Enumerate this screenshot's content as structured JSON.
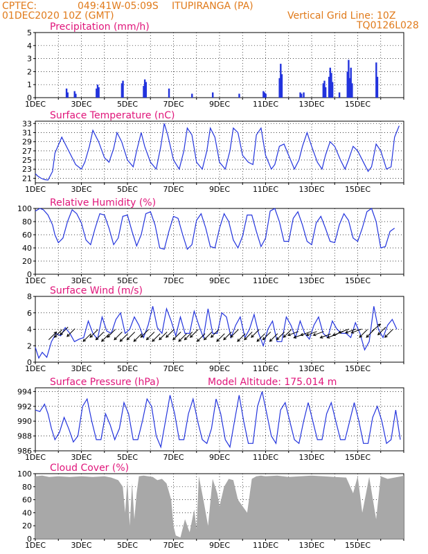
{
  "header": {
    "source": "CPTEC:",
    "coords": "049:41W-05:09S",
    "location": "ITUPIRANGA (PA)",
    "datetime": "01DEC2020 10Z (GMT)",
    "grid_note": "Vertical Grid Line: 10Z",
    "model_code": "TQ0126L028"
  },
  "colors": {
    "header": "#e07a1a",
    "title": "#e0157a",
    "line": "#2233dd",
    "cloud": "#a8a8a8"
  },
  "x_tick_labels": [
    "1DEC",
    "3DEC",
    "5DEC",
    "7DEC",
    "9DEC",
    "11DEC",
    "13DEC",
    "15DEC"
  ],
  "chart_data": [
    {
      "type": "bar",
      "title": "Precipitation (mm/h)",
      "ylim": [
        0,
        5
      ],
      "yticks": [
        "0",
        "1",
        "2",
        "3",
        "4",
        "5"
      ],
      "x_unit": "days since 1DEC 00Z",
      "x": [
        1.35,
        1.4,
        1.7,
        1.75,
        2.65,
        2.7,
        2.75,
        3.75,
        3.8,
        4.7,
        4.75,
        4.8,
        5.8,
        6.8,
        7.7,
        8.85,
        9.9,
        9.95,
        10.0,
        10.6,
        10.65,
        10.7,
        11.5,
        11.55,
        11.65,
        12.5,
        12.55,
        12.6,
        12.75,
        12.8,
        12.85,
        12.9,
        13.2,
        13.55,
        13.6,
        13.65,
        13.7,
        13.75,
        14.8,
        14.85
      ],
      "values": [
        0.7,
        0.4,
        0.5,
        0.3,
        0.7,
        1.0,
        0.8,
        1.1,
        1.3,
        0.9,
        1.4,
        1.2,
        0.7,
        0.3,
        0.4,
        0.3,
        0.5,
        0.4,
        0.3,
        1.5,
        2.6,
        1.8,
        0.4,
        0.3,
        0.4,
        1.1,
        1.3,
        0.8,
        1.6,
        2.3,
        1.9,
        1.2,
        0.4,
        2.0,
        2.9,
        1.5,
        2.3,
        1.1,
        2.7,
        1.6
      ]
    },
    {
      "type": "line",
      "title": "Surface Temperature (nC)",
      "ylim": [
        20,
        33.5
      ],
      "yticks": [
        "21",
        "23",
        "25",
        "27",
        "29",
        "31",
        "33"
      ],
      "ytick_values": [
        21,
        23,
        25,
        27,
        29,
        31,
        33
      ],
      "x": [
        0,
        0.1,
        0.25,
        0.4,
        0.55,
        0.75,
        0.85,
        1.15,
        1.45,
        1.75,
        2.0,
        2.15,
        2.35,
        2.5,
        2.75,
        3.0,
        3.2,
        3.4,
        3.55,
        3.75,
        4.0,
        4.25,
        4.4,
        4.6,
        4.75,
        5.0,
        5.25,
        5.45,
        5.6,
        5.75,
        6.0,
        6.25,
        6.45,
        6.6,
        6.8,
        7.0,
        7.25,
        7.45,
        7.6,
        7.8,
        8.0,
        8.25,
        8.45,
        8.6,
        8.8,
        9.0,
        9.25,
        9.45,
        9.6,
        9.8,
        10.0,
        10.25,
        10.4,
        10.6,
        10.8,
        11.0,
        11.25,
        11.45,
        11.6,
        11.8,
        12.0,
        12.25,
        12.45,
        12.6,
        12.8,
        13.0,
        13.25,
        13.45,
        13.6,
        13.8,
        14.0,
        14.25,
        14.45,
        14.6,
        14.8,
        15.0,
        15.25,
        15.45,
        15.6,
        15.8
      ],
      "values": [
        22,
        21.5,
        21,
        20.7,
        20.6,
        22.5,
        26.5,
        30,
        27,
        24,
        23,
        24.5,
        28,
        31.5,
        29,
        25.5,
        24.5,
        27.5,
        31,
        29,
        25,
        23.5,
        27,
        31,
        28,
        24.5,
        23,
        28,
        33,
        30.5,
        25,
        23,
        27,
        32,
        30.5,
        24.5,
        23,
        27,
        32,
        30,
        24.5,
        23,
        27,
        32,
        31,
        26,
        24.5,
        24,
        30.5,
        32,
        26,
        23,
        24,
        28,
        28.5,
        26,
        23,
        25,
        28,
        31,
        28,
        24.5,
        23,
        26,
        29,
        28,
        25,
        23,
        25,
        28,
        27,
        24.5,
        22.5,
        23.5,
        28.5,
        27,
        23,
        23.5,
        30,
        32.5
      ]
    },
    {
      "type": "line",
      "title": "Relative Humidity (%)",
      "ylim": [
        0,
        100
      ],
      "yticks": [
        "0",
        "20",
        "40",
        "60",
        "80",
        "100"
      ],
      "ytick_values": [
        0,
        20,
        40,
        60,
        80,
        100
      ],
      "x": [
        0,
        0.2,
        0.35,
        0.55,
        0.75,
        0.85,
        1.0,
        1.2,
        1.4,
        1.6,
        1.8,
        2.0,
        2.2,
        2.4,
        2.6,
        2.8,
        3.0,
        3.2,
        3.4,
        3.6,
        3.8,
        4.0,
        4.2,
        4.4,
        4.6,
        4.8,
        5.0,
        5.2,
        5.4,
        5.6,
        5.8,
        6.0,
        6.2,
        6.4,
        6.6,
        6.8,
        7.0,
        7.2,
        7.4,
        7.6,
        7.8,
        8.0,
        8.2,
        8.4,
        8.6,
        8.8,
        9.0,
        9.2,
        9.4,
        9.6,
        9.8,
        10.0,
        10.2,
        10.4,
        10.6,
        10.8,
        11.0,
        11.2,
        11.4,
        11.6,
        11.8,
        12.0,
        12.2,
        12.4,
        12.6,
        12.8,
        13.0,
        13.2,
        13.4,
        13.6,
        13.8,
        14.0,
        14.2,
        14.4,
        14.6,
        14.8,
        15.0,
        15.2,
        15.4,
        15.6
      ],
      "values": [
        96,
        100,
        98,
        90,
        75,
        60,
        48,
        55,
        80,
        98,
        92,
        78,
        52,
        45,
        70,
        92,
        90,
        70,
        45,
        55,
        88,
        90,
        65,
        43,
        60,
        92,
        95,
        75,
        40,
        38,
        65,
        88,
        85,
        60,
        38,
        45,
        82,
        92,
        70,
        42,
        40,
        70,
        92,
        80,
        52,
        40,
        58,
        90,
        90,
        65,
        42,
        55,
        96,
        100,
        80,
        50,
        50,
        85,
        95,
        75,
        50,
        45,
        78,
        88,
        70,
        50,
        48,
        75,
        92,
        82,
        55,
        50,
        70,
        95,
        100,
        80,
        40,
        42,
        65,
        70
      ]
    },
    {
      "type": "line",
      "title": "Surface Wind (m/s)",
      "ylim": [
        0,
        8
      ],
      "yticks": [
        "0",
        "2",
        "4",
        "6",
        "8"
      ],
      "ytick_values": [
        0,
        2,
        4,
        6,
        8
      ],
      "x": [
        0,
        0.15,
        0.3,
        0.5,
        0.7,
        0.9,
        1.1,
        1.3,
        1.5,
        1.7,
        1.9,
        2.1,
        2.3,
        2.5,
        2.7,
        2.9,
        3.1,
        3.3,
        3.5,
        3.7,
        3.9,
        4.1,
        4.3,
        4.5,
        4.7,
        4.9,
        5.1,
        5.3,
        5.5,
        5.7,
        5.9,
        6.1,
        6.3,
        6.5,
        6.7,
        6.9,
        7.1,
        7.3,
        7.5,
        7.7,
        7.9,
        8.1,
        8.3,
        8.5,
        8.7,
        8.9,
        9.1,
        9.3,
        9.5,
        9.7,
        9.9,
        10.1,
        10.3,
        10.5,
        10.7,
        10.9,
        11.1,
        11.3,
        11.5,
        11.7,
        11.9,
        12.1,
        12.3,
        12.5,
        12.7,
        12.9,
        13.1,
        13.3,
        13.5,
        13.7,
        13.9,
        14.1,
        14.3,
        14.5,
        14.7,
        14.9,
        15.1,
        15.3,
        15.5,
        15.7
      ],
      "values": [
        1.8,
        0.5,
        1.2,
        0.6,
        2.5,
        3.5,
        3.2,
        4.2,
        3.5,
        2.5,
        2.8,
        3.0,
        5.0,
        3.5,
        2.8,
        5.5,
        3.8,
        3.5,
        5.2,
        6.0,
        3.5,
        4.0,
        5.5,
        4.5,
        3.0,
        4.5,
        6.8,
        4.2,
        3.5,
        6.5,
        5.0,
        3.2,
        5.5,
        3.5,
        3.5,
        6.2,
        4.5,
        3.0,
        6.5,
        3.5,
        3.5,
        6.0,
        5.5,
        3.0,
        4.5,
        5.5,
        3.0,
        4.0,
        5.8,
        3.5,
        2.0,
        4.0,
        5.0,
        2.5,
        2.5,
        5.5,
        4.5,
        3.0,
        5.0,
        3.5,
        2.8,
        4.5,
        5.5,
        3.5,
        3.0,
        5.0,
        4.0,
        3.5,
        3.5,
        3.0,
        4.8,
        3.5,
        1.5,
        2.5,
        6.8,
        4.0,
        3.0,
        4.5,
        5.2,
        4.0
      ],
      "arrow_x": [
        0.75,
        1.0,
        1.25,
        1.55,
        2.25,
        2.55,
        2.8,
        3.05,
        3.3,
        3.6,
        3.85,
        4.15,
        4.45,
        4.75,
        5.0,
        5.25,
        5.55,
        5.85,
        6.15,
        6.4,
        6.65,
        6.9,
        7.2,
        7.5,
        7.8,
        8.05,
        8.35,
        8.65,
        8.95,
        9.25,
        9.55,
        9.8,
        10.05,
        10.35,
        10.65,
        10.95,
        11.2,
        11.45,
        11.75,
        12.0,
        12.3,
        12.6,
        12.9,
        13.15,
        13.4,
        13.7,
        13.95,
        14.25,
        14.55,
        14.8,
        15.05,
        15.35
      ],
      "arrow_y": [
        3.2,
        3.5,
        3.8,
        3.6,
        3.0,
        3.5,
        3.2,
        3.0,
        3.5,
        3.2,
        3.0,
        3.2,
        3.0,
        3.5,
        3.2,
        3.0,
        3.2,
        3.5,
        3.2,
        3.0,
        3.2,
        3.5,
        3.0,
        3.2,
        3.5,
        3.0,
        3.2,
        3.5,
        3.0,
        3.2,
        3.5,
        3.0,
        3.2,
        3.0,
        3.2,
        3.5,
        3.5,
        3.2,
        3.5,
        3.5,
        3.5,
        3.2,
        3.2,
        3.5,
        3.8,
        3.8,
        3.8,
        3.5,
        3.5,
        4.2,
        3.8,
        3.5
      ],
      "arrow_dir_deg": [
        -135,
        45,
        45,
        45,
        45,
        45,
        45,
        45,
        45,
        45,
        45,
        45,
        45,
        45,
        45,
        45,
        45,
        45,
        45,
        45,
        45,
        45,
        45,
        45,
        45,
        45,
        45,
        45,
        45,
        45,
        45,
        45,
        45,
        45,
        45,
        45,
        20,
        20,
        20,
        20,
        20,
        20,
        20,
        20,
        20,
        20,
        20,
        45,
        45,
        -140,
        45,
        45
      ]
    },
    {
      "type": "line",
      "title": "Surface Pressure (hPa)",
      "annotation": "Model Altitude: 175.014 m",
      "ylim": [
        986,
        994.5
      ],
      "yticks": [
        "986",
        "988",
        "990",
        "992",
        "994"
      ],
      "ytick_values": [
        986,
        988,
        990,
        992,
        994
      ],
      "x": [
        0,
        0.2,
        0.4,
        0.55,
        0.7,
        0.85,
        1.05,
        1.25,
        1.45,
        1.65,
        1.85,
        2.05,
        2.25,
        2.45,
        2.65,
        2.85,
        3.05,
        3.25,
        3.45,
        3.65,
        3.85,
        4.05,
        4.25,
        4.45,
        4.65,
        4.85,
        5.05,
        5.25,
        5.45,
        5.65,
        5.85,
        6.05,
        6.25,
        6.45,
        6.65,
        6.85,
        7.05,
        7.25,
        7.45,
        7.65,
        7.85,
        8.05,
        8.25,
        8.45,
        8.65,
        8.85,
        9.05,
        9.25,
        9.45,
        9.65,
        9.85,
        10.05,
        10.25,
        10.45,
        10.65,
        10.85,
        11.05,
        11.25,
        11.45,
        11.65,
        11.85,
        12.05,
        12.25,
        12.45,
        12.65,
        12.85,
        13.05,
        13.25,
        13.45,
        13.65,
        13.85,
        14.05,
        14.25,
        14.45,
        14.65,
        14.85,
        15.05,
        15.25,
        15.45,
        15.65,
        15.85
      ],
      "values": [
        991.5,
        991.3,
        992.3,
        991,
        989,
        987.5,
        988.5,
        990.5,
        989,
        987.2,
        988,
        992,
        993,
        990,
        987.5,
        987.5,
        991,
        989.5,
        987.5,
        989,
        992.5,
        991,
        987.5,
        987.5,
        990,
        993,
        992,
        988,
        986.5,
        990,
        993.5,
        991,
        987.5,
        987.5,
        991,
        993,
        990,
        987.5,
        987,
        989,
        993,
        991,
        987.5,
        986.5,
        990,
        993.5,
        990,
        987,
        987,
        992,
        994,
        991,
        988,
        987,
        991.5,
        992.5,
        990,
        987.5,
        987,
        990,
        992.5,
        990,
        987.5,
        987.5,
        991,
        992.5,
        990,
        987.5,
        987.5,
        990,
        992.5,
        990,
        987,
        987,
        990.5,
        992,
        990,
        987,
        987.5,
        991.5,
        987.5
      ]
    },
    {
      "type": "area",
      "title": "Cloud Cover (%)",
      "ylim": [
        0,
        100
      ],
      "yticks": [
        "0",
        "20",
        "40",
        "60",
        "80",
        "100"
      ],
      "ytick_values": [
        0,
        20,
        40,
        60,
        80,
        100
      ],
      "x": [
        0,
        0.3,
        0.6,
        1,
        1.5,
        2,
        2.5,
        3,
        3.3,
        3.6,
        3.8,
        3.9,
        4.0,
        4.1,
        4.2,
        4.3,
        4.4,
        4.5,
        4.7,
        4.9,
        5.1,
        5.3,
        5.5,
        5.7,
        5.9,
        6.0,
        6.1,
        6.3,
        6.5,
        6.7,
        6.9,
        7.0,
        7.1,
        7.3,
        7.5,
        7.7,
        7.9,
        8.0,
        8.2,
        8.4,
        8.6,
        8.8,
        9.0,
        9.2,
        9.4,
        9.6,
        9.8,
        10,
        10.5,
        11,
        11.5,
        12,
        12.5,
        13,
        13.5,
        13.8,
        14.0,
        14.2,
        14.5,
        14.8,
        15,
        15.3,
        15.6,
        15.9,
        16
      ],
      "values": [
        96,
        97,
        95,
        96,
        95,
        96,
        95,
        96,
        94,
        90,
        80,
        40,
        90,
        20,
        85,
        30,
        70,
        96,
        97,
        96,
        95,
        90,
        92,
        85,
        60,
        20,
        5,
        2,
        30,
        10,
        45,
        15,
        96,
        60,
        20,
        92,
        70,
        50,
        80,
        92,
        90,
        60,
        50,
        40,
        92,
        96,
        97,
        96,
        97,
        95,
        96,
        97,
        96,
        95,
        94,
        70,
        96,
        40,
        95,
        30,
        96,
        92,
        94,
        96,
        97
      ]
    }
  ]
}
